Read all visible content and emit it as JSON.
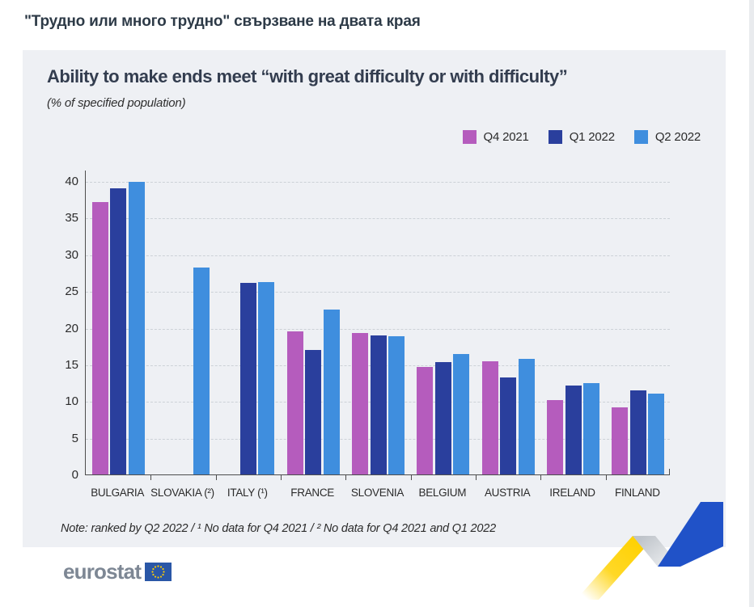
{
  "page": {
    "heading": "\"Трудно или много трудно\" свързване на двата края"
  },
  "chart_data": {
    "type": "bar",
    "title": "Ability to make ends meet “with great difficulty or with difficulty”",
    "subtitle": "(% of specified population)",
    "note": "Note: ranked by Q2 2022 / ¹ No data for Q4 2021 / ² No data for Q4 2021 and Q1 2022",
    "categories": [
      "BULGARIA",
      "SLOVAKIA (²)",
      "ITALY (¹)",
      "FRANCE",
      "SLOVENIA",
      "BELGIUM",
      "AUSTRIA",
      "IRELAND",
      "FINLAND"
    ],
    "series": [
      {
        "name": "Q4 2021",
        "color": "#b55cbd",
        "values": [
          37.1,
          null,
          null,
          19.5,
          19.3,
          14.7,
          15.4,
          10.1,
          9.2
        ]
      },
      {
        "name": "Q1 2022",
        "color": "#2a3f9d",
        "values": [
          39.0,
          null,
          26.1,
          17.0,
          18.9,
          15.3,
          13.2,
          12.1,
          11.5
        ]
      },
      {
        "name": "Q2 2022",
        "color": "#3f8ede",
        "values": [
          39.9,
          28.2,
          26.2,
          22.5,
          18.8,
          16.4,
          15.8,
          12.5,
          11.0
        ]
      }
    ],
    "ylim": [
      0,
      40
    ],
    "ytick_step": 5,
    "grid": true,
    "legend_position": "top-right",
    "xlabel": "",
    "ylabel": ""
  },
  "branding": {
    "logo_text": "eurostat",
    "eu_flag_blue": "#2a57a7",
    "eu_star_yellow": "#ffcc00"
  },
  "decor": {
    "ribbon_yellow": "#ffd100",
    "ribbon_silver": "#c9cdd2",
    "ribbon_blue": "#2052c8"
  }
}
